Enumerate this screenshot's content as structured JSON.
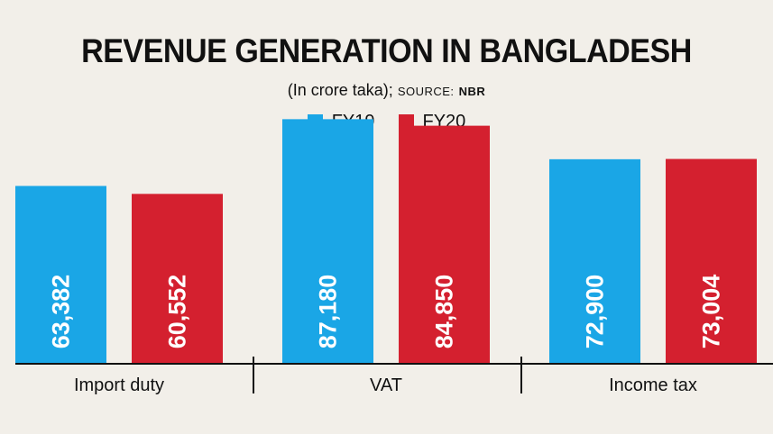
{
  "chart_data": {
    "type": "bar",
    "title": "REVENUE GENERATION IN BANGLADESH",
    "subtitle": "(In crore taka);",
    "source_label": "SOURCE:",
    "source_name": "NBR",
    "categories": [
      "Import duty",
      "VAT",
      "Income tax"
    ],
    "series": [
      {
        "name": "FY19",
        "color": "#1aa6e6",
        "values": [
          63382,
          87180,
          72900
        ],
        "labels": [
          "63,382",
          "87,180",
          "72,900"
        ]
      },
      {
        "name": "FY20",
        "color": "#d4202f",
        "values": [
          60552,
          84850,
          73004
        ],
        "labels": [
          "60,552",
          "84,850",
          "73,004"
        ]
      }
    ],
    "ylim": [
      0,
      95000
    ],
    "grid": false,
    "legend_position": "top-center"
  }
}
